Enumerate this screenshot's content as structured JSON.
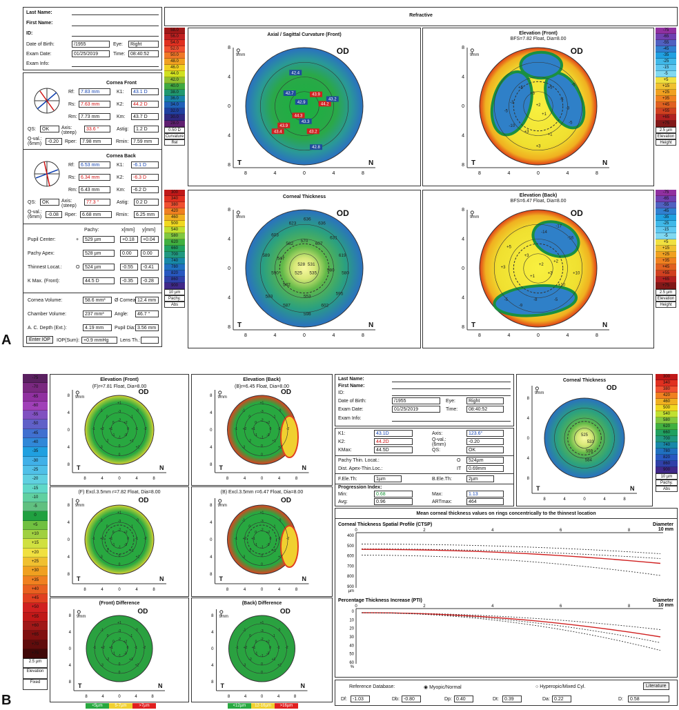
{
  "labels": {
    "a": "A",
    "b": "B"
  },
  "patient": {
    "last_name_label": "Last Name:",
    "first_name_label": "First Name:",
    "id_label": "ID:",
    "dob_label": "Date of Birth:",
    "dob_value": "/1955",
    "eye_label": "Eye:",
    "eye_value": "Right",
    "exam_date_label": "Exam Date:",
    "exam_date_value": "01/25/2019",
    "exam_date_value_b": "01/25/2019",
    "time_label": "Time:",
    "time_value": "08:40:52",
    "exam_info_label": "Exam Info:"
  },
  "header": {
    "refractive": "Refractive"
  },
  "cornea_front": {
    "title": "Cornea Front",
    "rf_l": "Rf:",
    "rf": "7.83 mm",
    "k1_l": "K1:",
    "k1": "43.1 D",
    "rs_l": "Rs:",
    "rs": "7.63 mm",
    "k2_l": "K2:",
    "k2": "44.2 D",
    "rm_l": "Rm:",
    "rm": "7.73 mm",
    "km_l": "Km:",
    "km": "43.7 D",
    "qs_l": "QS:",
    "qs": "OK",
    "axis_l": "Axis: (steep)",
    "axis": "33.6 °",
    "astig_l": "Astig:",
    "astig": "1.2 D",
    "qval_l": "Q-val.: (6mm)",
    "qval": "-0.20",
    "rper_l": "Rper:",
    "rper": "7.98 mm",
    "rmin_l": "Rmin:",
    "rmin": "7.59 mm"
  },
  "cornea_back": {
    "title": "Cornea Back",
    "rf_l": "Rf:",
    "rf": "6.53 mm",
    "k1_l": "K1:",
    "k1": "-6.1 D",
    "rs_l": "Rs:",
    "rs": "6.34 mm",
    "k2_l": "K2:",
    "k2": "-6.3 D",
    "rm_l": "Rm:",
    "rm": "6.43 mm",
    "km_l": "Km:",
    "km": "-6.2 D",
    "qs_l": "QS:",
    "qs": "OK",
    "axis_l": "Axis: (steep)",
    "axis": "77.3 °",
    "astig_l": "Astig:",
    "astig": "0.2 D",
    "qval_l": "Q-val.: (6mm)",
    "qval": "-0.08",
    "rper_l": "Rper:",
    "rper": "6.68 mm",
    "rmin_l": "Rmin:",
    "rmin": "6.25 mm"
  },
  "pachy": {
    "h_pachy": "Pachy:",
    "h_x": "x[mm]",
    "h_y": "y[mm]",
    "rows": [
      {
        "label": "Pupil Center:",
        "sym": "+",
        "pachy": "529 µm",
        "x": "+0.18",
        "y": "+0.04"
      },
      {
        "label": "Pachy Apex:",
        "sym": "",
        "pachy": "528 µm",
        "x": "0.00",
        "y": "0.00"
      },
      {
        "label": "Thinnest Locat.:",
        "sym": "O",
        "pachy": "524 µm",
        "x": "-0.55",
        "y": "-0.41"
      },
      {
        "label": "K Max. (Front):",
        "sym": "",
        "pachy": "44.5 D",
        "x": "-0.35",
        "y": "-0.28"
      }
    ]
  },
  "volumes": {
    "cv_l": "Cornea Volume:",
    "cv": "58.6 mm³",
    "dc_l": "Ø Cornea:",
    "dc": "12.4 mm",
    "chv_l": "Chamber Volume:",
    "chv": "237 mm³",
    "ang_l": "Angle:",
    "ang": "46.7 °",
    "acd_l": "A. C. Depth (Ext.):",
    "acd": "4.19 mm",
    "pd_l": "Pupil Dia:",
    "pd": "3.56 mm",
    "enter_iop": "Enter IOP",
    "iop_l": "IOP(Sum):",
    "iop": "+0.9 mmHg",
    "lens_l": "Lens Th.:"
  },
  "maps_a": {
    "axial_title": "Axial / Sagittal Curvature (Front)",
    "elev_front_title": "Elevation (Front)",
    "elev_front_sub": "BFS=7.82 Float, Dia=8.00",
    "pachy_title": "Corneal Thickness",
    "elev_back_title": "Elevation (Back)",
    "elev_back_sub": "BFS=6.47 Float, Dia=8.00",
    "od": "OD",
    "t": "T",
    "n": "N",
    "mm": "9mm"
  },
  "scale_curv": {
    "values": [
      "58.0",
      "56.0",
      "54.0",
      "52.0",
      "50.0",
      "48.0",
      "46.0",
      "44.0",
      "42.0",
      "40.0",
      "38.0",
      "36.0",
      "34.0",
      "32.0",
      "30.0",
      "28.0"
    ],
    "step": "0.50 D",
    "f1": "Curvature",
    "f2": "Rel"
  },
  "scale_elev": {
    "values": [
      "-75",
      "-65",
      "-55",
      "-45",
      "-35",
      "-25",
      "-15",
      "-5",
      "+5",
      "+15",
      "+25",
      "+35",
      "+45",
      "+55",
      "+65",
      "+75"
    ],
    "step": "2.5 µm",
    "f1": "Elevation",
    "f2": "Height"
  },
  "scale_pachy": {
    "values": [
      "300",
      "340",
      "380",
      "420",
      "460",
      "500",
      "540",
      "580",
      "620",
      "660",
      "700",
      "740",
      "780",
      "820",
      "860",
      "900"
    ],
    "step": "10 µm",
    "f1": "Pachy.",
    "f2": "Abs"
  },
  "scale_b": {
    "values": [
      "-75",
      "-70",
      "-65",
      "-60",
      "-55",
      "-50",
      "-45",
      "-40",
      "-35",
      "-30",
      "-25",
      "-20",
      "-15",
      "-10",
      "-5",
      "0",
      "+5",
      "+10",
      "+15",
      "+20",
      "+25",
      "+30",
      "+35",
      "+40",
      "+45",
      "+50",
      "+55",
      "+60",
      "+65",
      "+70",
      "+75"
    ],
    "step": "2.5 µm",
    "f1": "Elevation",
    "f2": "Fixed"
  },
  "axial_values": [
    "42.4",
    "42.7",
    "42.9",
    "43.9",
    "44.2",
    "43.2",
    "44.3",
    "43.3",
    "43.4",
    "43.9",
    "43.2",
    "42.8"
  ],
  "pachy_values": [
    "623",
    "636",
    "636",
    "603",
    "562",
    "570",
    "607",
    "631",
    "589",
    "547",
    "528",
    "531",
    "619",
    "590",
    "525",
    "535",
    "580",
    "580",
    "542",
    "583",
    "595",
    "587",
    "553",
    "602",
    "598"
  ],
  "maps_b": {
    "ef_title": "Elevation (Front)",
    "ef_sub": "(F)r=7.81 Float, Dia=8.00",
    "eb_title": "Elevation (Back)",
    "eb_sub": "(B)r=6.45 Float, Dia=8.00",
    "efx_sub": "(F) Excl.3.5mm r=7.82 Float, Dia=8.00",
    "ebx_sub": "(B) Excl.3.5mm r=6.47 Float, Dia=8.00",
    "fd_title": "(Front) Difference",
    "bd_title": "(Back) Difference",
    "ct_title": "Corneal Thickness",
    "leg1": [
      "<5µm",
      "5-7µm",
      ">7µm"
    ],
    "leg2": [
      "<12µm",
      "12-16µm",
      ">16µm"
    ]
  },
  "info_b": {
    "k1_l": "K1:",
    "k1": "43.1D",
    "k2_l": "K2:",
    "k2": "44.2D",
    "kmax_l": "KMax:",
    "kmax": "44.5D",
    "axis_l": "Axis:",
    "axis": "123.6°",
    "qval_l": "Q-val.: (6mm)",
    "qval": "-0.20",
    "qs_l": "QS:",
    "qs": "OK",
    "pt_l": "Pachy Thin. Locat.:",
    "pt_s": "O",
    "pt": "524µm",
    "da_l": "Dist. Apex-Thin.Loc.:",
    "da_s": "IT",
    "da": "0.69mm",
    "fe_l": "F.Ele.Th:",
    "fe": "1µm",
    "be_l": "B.Ele.Th:",
    "be": "2µm",
    "pi_l": "Progression Index:",
    "min_l": "Min:",
    "min": "0.68",
    "max_l": "Max:",
    "max": "1.13",
    "avg_l": "Avg:",
    "avg": "0.96",
    "art_l": "ARTmax:",
    "art": "464"
  },
  "ctsp": {
    "header": "Mean corneal thickness values on rings concentrically to the thinnest location",
    "title1": "Corneal Thickness Spatial Profile (CTSP)",
    "title2": "Percentage Thickness Increase (PTI)",
    "diam": "Diameter",
    "mm": "10 mm",
    "x": [
      "0",
      "2",
      "4",
      "6",
      "8"
    ],
    "y1": [
      "400",
      "500",
      "600",
      "700",
      "800",
      "900"
    ],
    "unit1": "µm",
    "y2": [
      "0",
      "10",
      "20",
      "30",
      "40",
      "50",
      "60"
    ],
    "unit2": "%"
  },
  "refdb": {
    "label": "Reference Database:",
    "opt1": "Myopic/Normal",
    "opt2": "Hyperopic/Mixed Cyl.",
    "lit": "Literature",
    "df_l": "Df:",
    "df": "-1.03",
    "db_l": "Db:",
    "db": "-0.80",
    "dp_l": "Dp:",
    "dp": "0.40",
    "dt_l": "Dt:",
    "dt": "0.39",
    "da_l": "Da:",
    "da": "0.22",
    "d_l": "D:",
    "d": "0.58"
  }
}
